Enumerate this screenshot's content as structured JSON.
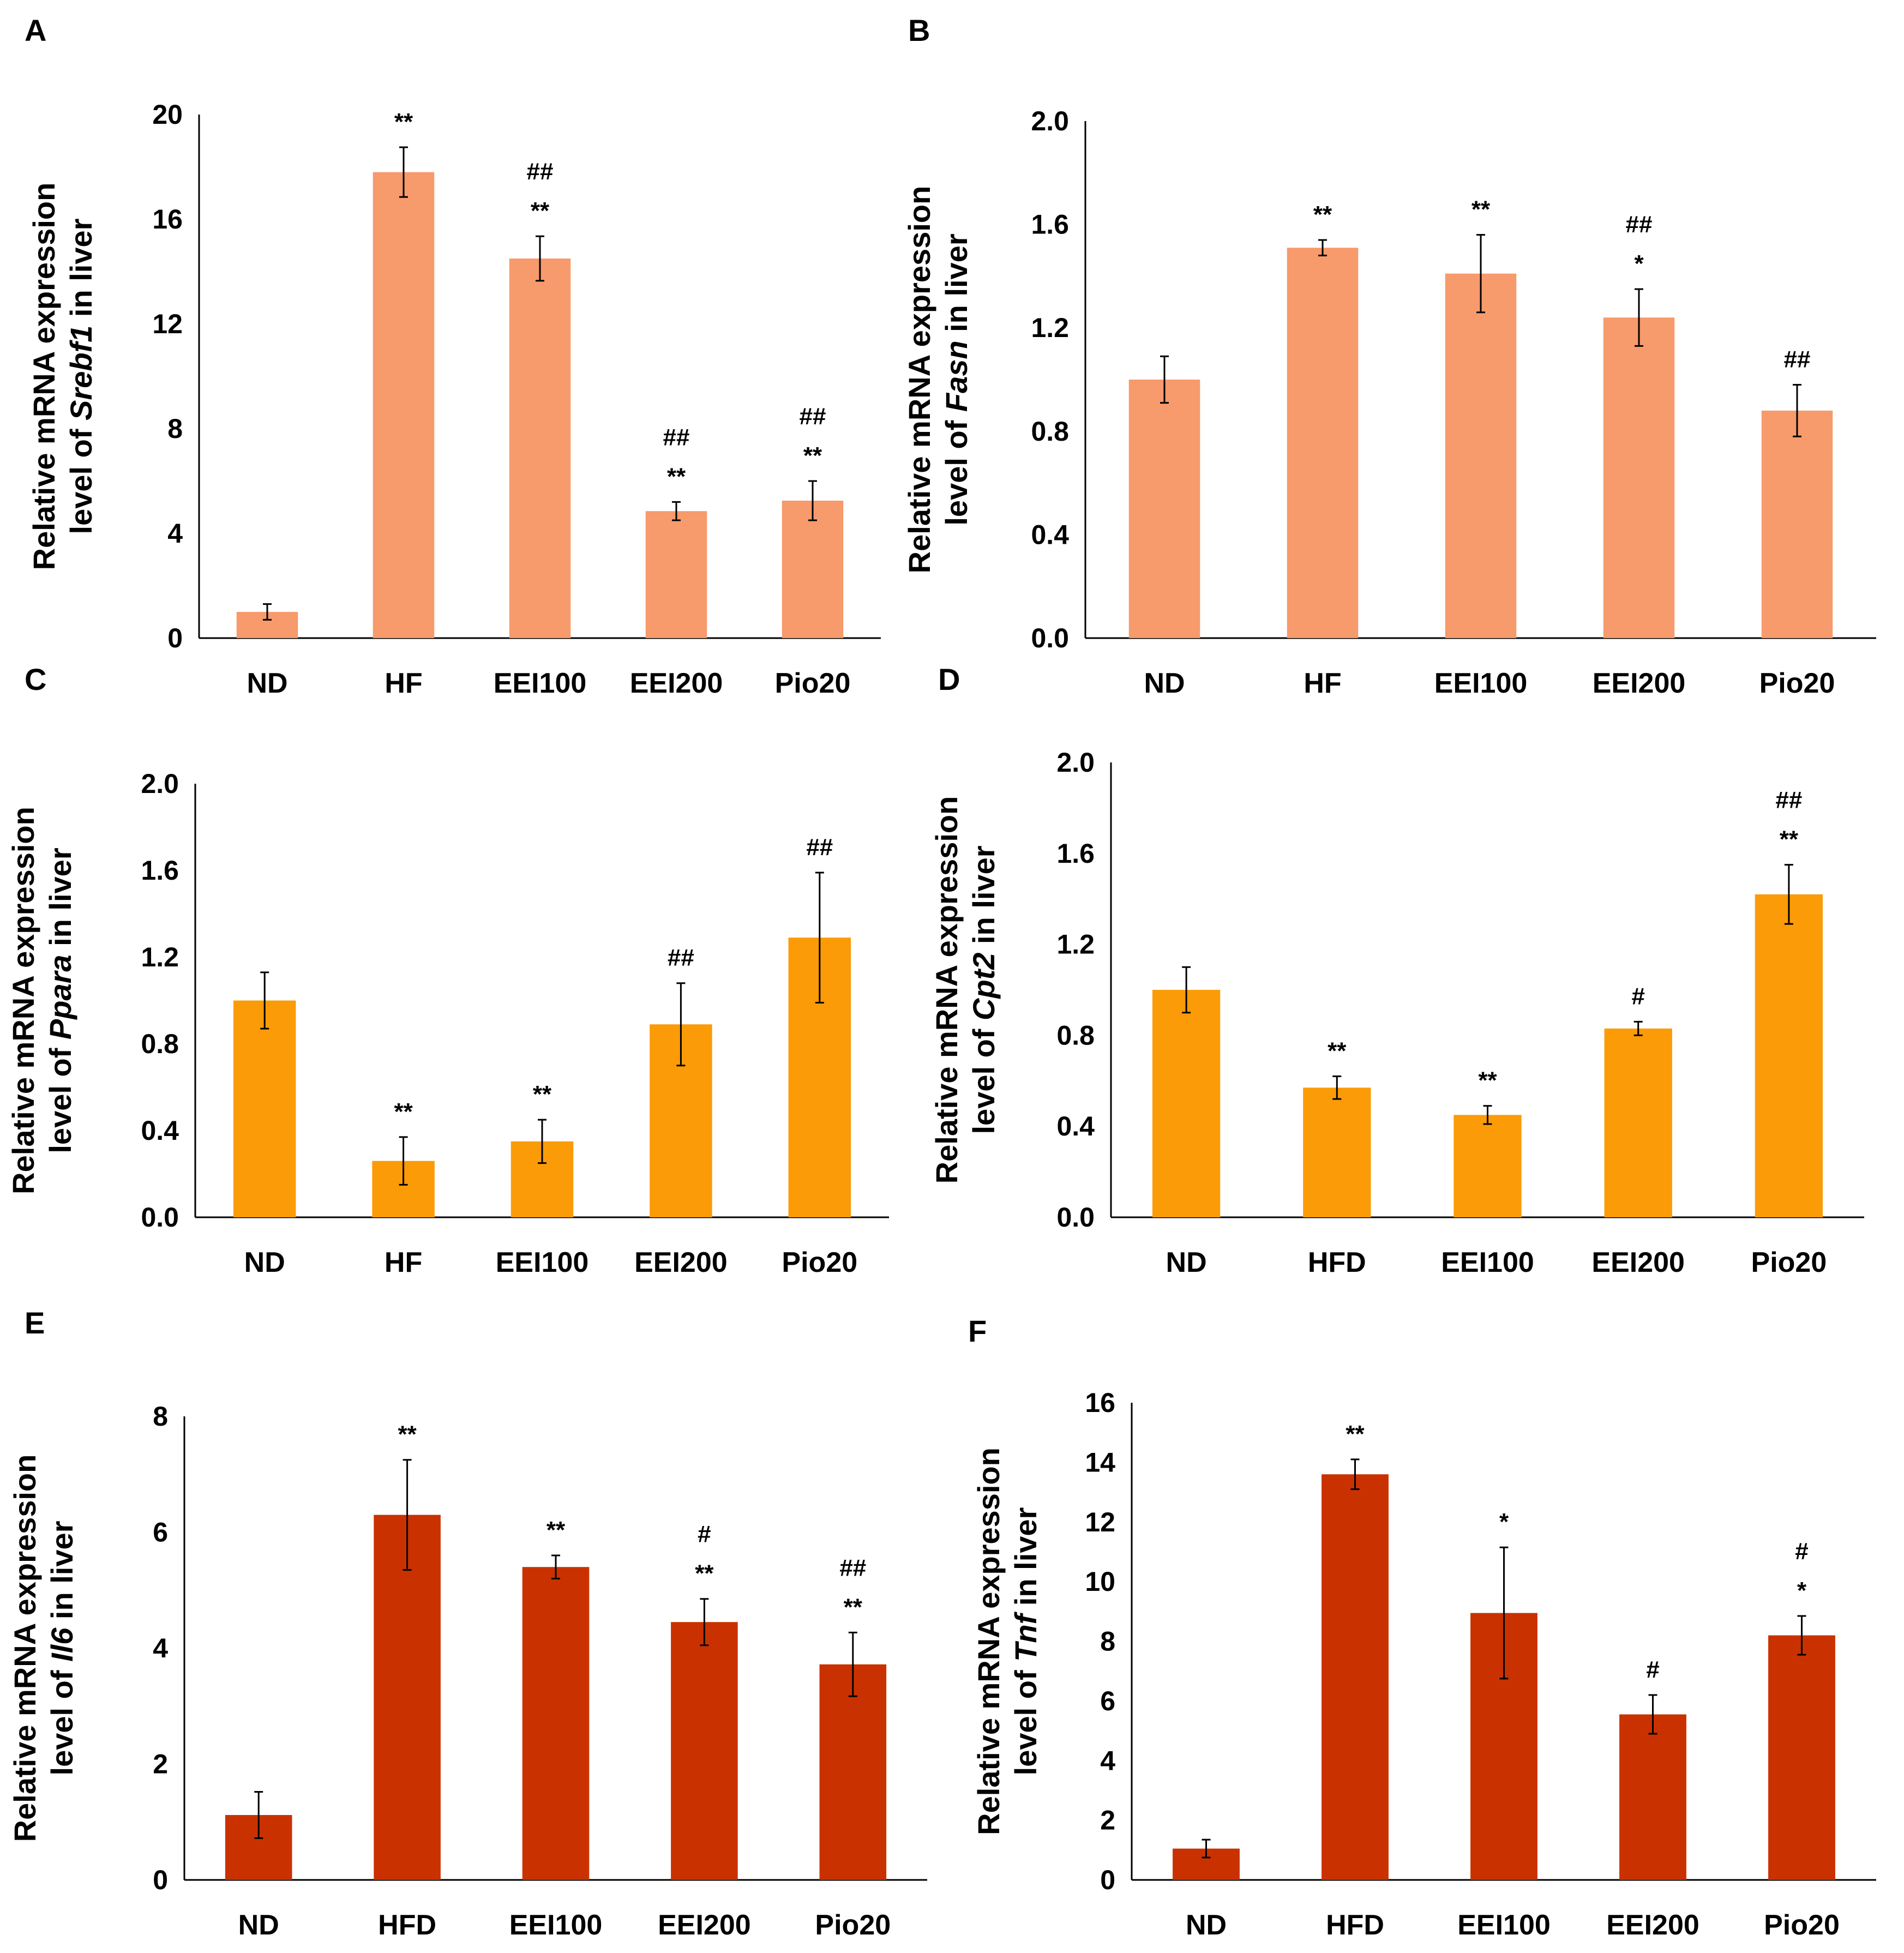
{
  "colors": {
    "A": "#f79a6c",
    "B": "#f79a6c",
    "C": "#fb9b07",
    "D": "#fb9b07",
    "E": "#c93200",
    "F": "#c93200"
  },
  "chart_data": [
    {
      "id": "A",
      "panel_label": "A",
      "type": "bar",
      "ylabel_lines": [
        [
          {
            "t": "Relative mRNA expression",
            "i": false
          }
        ],
        [
          {
            "t": "level of ",
            "i": false
          },
          {
            "t": "Srebf1",
            "i": true
          },
          {
            "t": " in liver",
            "i": false
          }
        ]
      ],
      "categories": [
        "ND",
        "HF",
        "EEI100",
        "EEI200",
        "Pio20"
      ],
      "values": [
        1.0,
        17.8,
        14.5,
        4.85,
        5.25
      ],
      "errors": [
        0.3,
        0.95,
        0.85,
        0.35,
        0.75
      ],
      "annotations": [
        [],
        [
          "**"
        ],
        [
          "##",
          "**"
        ],
        [
          "##",
          "**"
        ],
        [
          "##",
          "**"
        ]
      ],
      "ylim": [
        0,
        20
      ],
      "yticks": [
        "0",
        "4",
        "8",
        "12",
        "16",
        "20"
      ],
      "color": "#f79a6c"
    },
    {
      "id": "B",
      "panel_label": "B",
      "type": "bar",
      "ylabel_lines": [
        [
          {
            "t": "Relative mRNA expression",
            "i": false
          }
        ],
        [
          {
            "t": "level of ",
            "i": false
          },
          {
            "t": "Fasn",
            "i": true
          },
          {
            "t": " in liver",
            "i": false
          }
        ]
      ],
      "categories": [
        "ND",
        "HF",
        "EEI100",
        "EEI200",
        "Pio20"
      ],
      "values": [
        1.0,
        1.51,
        1.41,
        1.24,
        0.88
      ],
      "errors": [
        0.09,
        0.03,
        0.15,
        0.11,
        0.1
      ],
      "annotations": [
        [],
        [
          "**"
        ],
        [
          "**"
        ],
        [
          "##",
          "*"
        ],
        [
          "##"
        ]
      ],
      "ylim": [
        0,
        2.0
      ],
      "yticks": [
        "0.0",
        "0.4",
        "0.8",
        "1.2",
        "1.6",
        "2.0"
      ],
      "color": "#f79a6c"
    },
    {
      "id": "C",
      "panel_label": "C",
      "type": "bar",
      "ylabel_lines": [
        [
          {
            "t": "Relative  mRNA expression",
            "i": false
          }
        ],
        [
          {
            "t": "level of ",
            "i": false
          },
          {
            "t": "Ppara",
            "i": true
          },
          {
            "t": " in liver",
            "i": false
          }
        ]
      ],
      "categories": [
        "ND",
        "HF",
        "EEI100",
        "EEI200",
        "Pio20"
      ],
      "values": [
        1.0,
        0.26,
        0.35,
        0.89,
        1.29
      ],
      "errors": [
        0.13,
        0.11,
        0.1,
        0.19,
        0.3
      ],
      "annotations": [
        [],
        [
          "**"
        ],
        [
          "**"
        ],
        [
          "##"
        ],
        [
          "##"
        ]
      ],
      "ylim": [
        0,
        2.0
      ],
      "yticks": [
        "0.0",
        "0.4",
        "0.8",
        "1.2",
        "1.6",
        "2.0"
      ],
      "color": "#fb9b07"
    },
    {
      "id": "D",
      "panel_label": "D",
      "type": "bar",
      "ylabel_lines": [
        [
          {
            "t": "Relative mRNA expression",
            "i": false
          }
        ],
        [
          {
            "t": "level of ",
            "i": false
          },
          {
            "t": "Cpt2",
            "i": true
          },
          {
            "t": " in liver",
            "i": false
          }
        ]
      ],
      "categories": [
        "ND",
        "HFD",
        "EEI100",
        "EEI200",
        "Pio20"
      ],
      "values": [
        1.0,
        0.57,
        0.45,
        0.83,
        1.42
      ],
      "errors": [
        0.1,
        0.05,
        0.04,
        0.03,
        0.13
      ],
      "annotations": [
        [],
        [
          "**"
        ],
        [
          "**"
        ],
        [
          "#"
        ],
        [
          "##",
          "**"
        ]
      ],
      "ylim": [
        0,
        2.0
      ],
      "yticks": [
        "0.0",
        "0.4",
        "0.8",
        "1.2",
        "1.6",
        "2.0"
      ],
      "color": "#fb9b07"
    },
    {
      "id": "E",
      "panel_label": "E",
      "type": "bar",
      "ylabel_lines": [
        [
          {
            "t": "Relative mRNA expression",
            "i": false
          }
        ],
        [
          {
            "t": "level of ",
            "i": false
          },
          {
            "t": "Il6",
            "i": true
          },
          {
            "t": " in liver",
            "i": false
          }
        ]
      ],
      "categories": [
        "ND",
        "HFD",
        "EEI100",
        "EEI200",
        "Pio20"
      ],
      "values": [
        1.12,
        6.3,
        5.4,
        4.45,
        3.72
      ],
      "errors": [
        0.4,
        0.95,
        0.2,
        0.4,
        0.55
      ],
      "annotations": [
        [],
        [
          "**"
        ],
        [
          "**"
        ],
        [
          "#",
          "**"
        ],
        [
          "##",
          "**"
        ]
      ],
      "ylim": [
        0,
        8
      ],
      "yticks": [
        "0",
        "2",
        "4",
        "6",
        "8"
      ],
      "color": "#c93200"
    },
    {
      "id": "F",
      "panel_label": "F",
      "type": "bar",
      "ylabel_lines": [
        [
          {
            "t": "Relative mRNA expression",
            "i": false
          }
        ],
        [
          {
            "t": "level of ",
            "i": false
          },
          {
            "t": "Tnf",
            "i": true
          },
          {
            "t": " in liver",
            "i": false
          }
        ]
      ],
      "categories": [
        "ND",
        "HFD",
        "EEI100",
        "EEI200",
        "Pio20"
      ],
      "values": [
        1.05,
        13.6,
        8.95,
        5.55,
        8.2
      ],
      "errors": [
        0.3,
        0.5,
        2.2,
        0.65,
        0.65
      ],
      "annotations": [
        [],
        [
          "**"
        ],
        [
          "*"
        ],
        [
          "#"
        ],
        [
          "#",
          "*"
        ]
      ],
      "ylim": [
        0,
        16
      ],
      "yticks": [
        "0",
        "2",
        "4",
        "6",
        "8",
        "10",
        "12",
        "14",
        "16"
      ],
      "color": "#c93200"
    }
  ]
}
